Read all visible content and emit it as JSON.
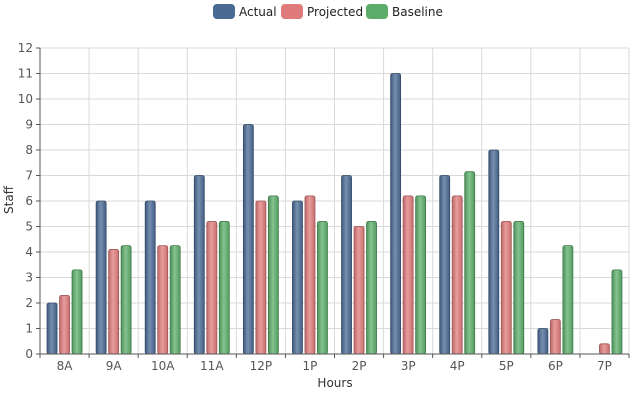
{
  "chart_data": {
    "type": "bar",
    "title": "",
    "xlabel": "Hours",
    "ylabel": "Staff",
    "ylim": [
      0,
      12
    ],
    "yticks": [
      0,
      1,
      2,
      3,
      4,
      5,
      6,
      7,
      8,
      9,
      10,
      11,
      12
    ],
    "grid": true,
    "legend_position": "top-center",
    "categories": [
      "8A",
      "9A",
      "10A",
      "11A",
      "12P",
      "1P",
      "2P",
      "3P",
      "4P",
      "5P",
      "6P",
      "7P"
    ],
    "series": [
      {
        "name": "Actual",
        "color": "#4a6a94",
        "values": [
          2,
          6,
          6,
          7,
          9,
          6,
          7,
          11,
          7,
          8,
          1,
          0
        ]
      },
      {
        "name": "Projected",
        "color": "#e07b7b",
        "values": [
          2.3,
          4.1,
          4.25,
          5.2,
          6.0,
          6.2,
          5.0,
          6.2,
          6.2,
          5.2,
          1.35,
          0.4
        ]
      },
      {
        "name": "Baseline",
        "color": "#5cad6a",
        "values": [
          3.3,
          4.25,
          4.25,
          5.2,
          6.2,
          5.2,
          5.2,
          6.2,
          7.15,
          5.2,
          4.25,
          3.3
        ]
      }
    ]
  }
}
